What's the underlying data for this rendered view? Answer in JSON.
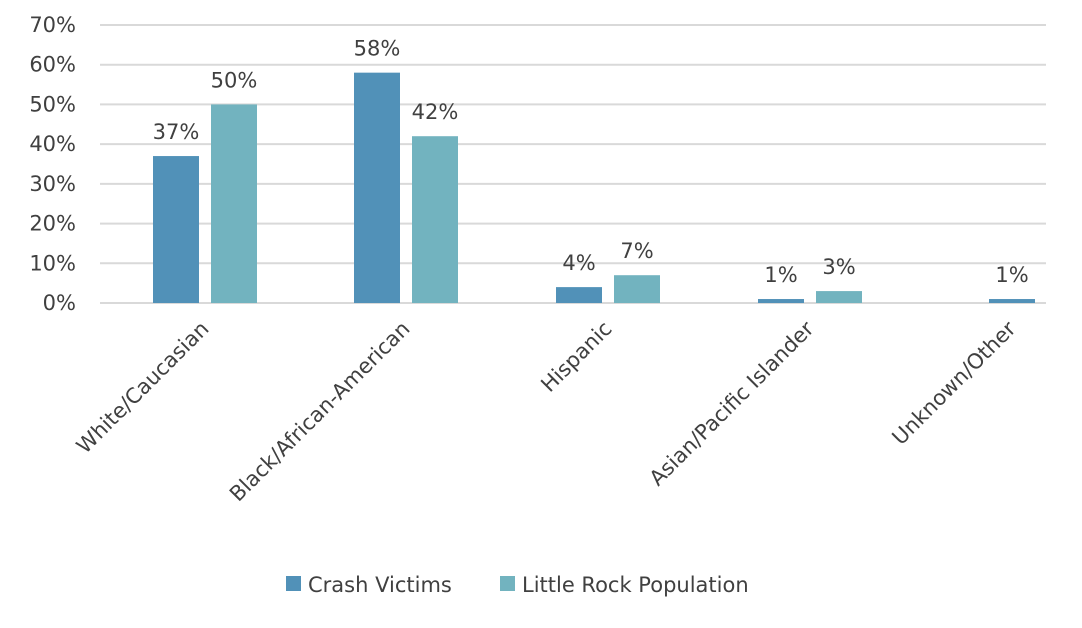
{
  "chart_data": {
    "type": "bar",
    "categories": [
      "White/Caucasian",
      "Black/African-American",
      "Hispanic",
      "Asian/Pacific Islander",
      "Unknown/Other"
    ],
    "series": [
      {
        "name": "Crash Victims",
        "values": [
          37,
          58,
          4,
          1,
          1
        ],
        "labels": [
          "37%",
          "58%",
          "4%",
          "1%",
          "1%"
        ],
        "color": "#5191b8"
      },
      {
        "name": "Little Rock Population",
        "values": [
          50,
          42,
          7,
          3,
          null
        ],
        "labels": [
          "50%",
          "42%",
          "7%",
          "3%",
          null
        ],
        "color": "#72b3bf"
      }
    ],
    "y_ticks": [
      "0%",
      "10%",
      "20%",
      "30%",
      "40%",
      "50%",
      "60%",
      "70%"
    ],
    "ylim": [
      0,
      70
    ],
    "ylabel": "",
    "xlabel": "",
    "grid": true,
    "legend": "bottom"
  }
}
